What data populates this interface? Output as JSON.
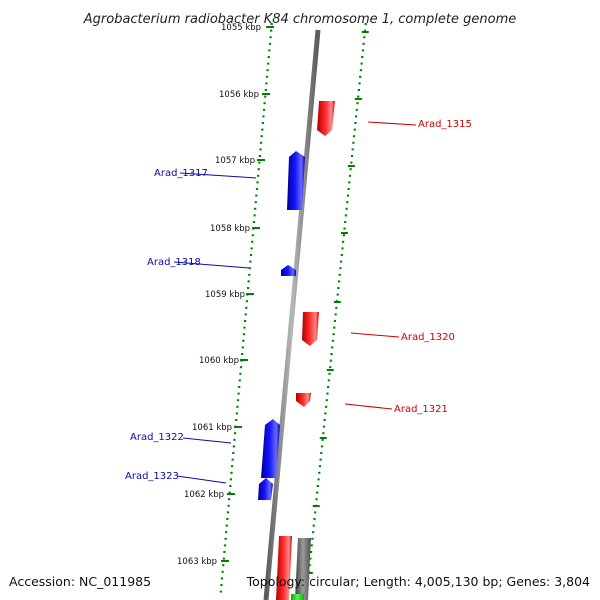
{
  "title": "Agrobacterium radiobacter K84 chromosome 1, complete genome",
  "footer": {
    "accession": "Accession: NC_011985",
    "summary": "Topology: circular; Length: 4,005,130 bp; Genes: 3,804"
  },
  "colors": {
    "forward_gene": "#ff0000",
    "reverse_gene": "#0000ff",
    "backbone": "#808080",
    "ticks": "#008000",
    "other_gene": "#22cc22"
  },
  "scale": {
    "unit": "kbp",
    "ticks": [
      "1055 kbp",
      "1056 kbp",
      "1057 kbp",
      "1058 kbp",
      "1059 kbp",
      "1060 kbp",
      "1061 kbp",
      "1062 kbp",
      "1063 kbp"
    ]
  },
  "genes": [
    {
      "name": "Arad_1315",
      "strand": "forward"
    },
    {
      "name": "Arad_1317",
      "strand": "reverse"
    },
    {
      "name": "Arad_1318",
      "strand": "reverse"
    },
    {
      "name": "Arad_1320",
      "strand": "forward"
    },
    {
      "name": "Arad_1321",
      "strand": "forward"
    },
    {
      "name": "Arad_1322",
      "strand": "reverse"
    },
    {
      "name": "Arad_1323",
      "strand": "reverse"
    }
  ]
}
